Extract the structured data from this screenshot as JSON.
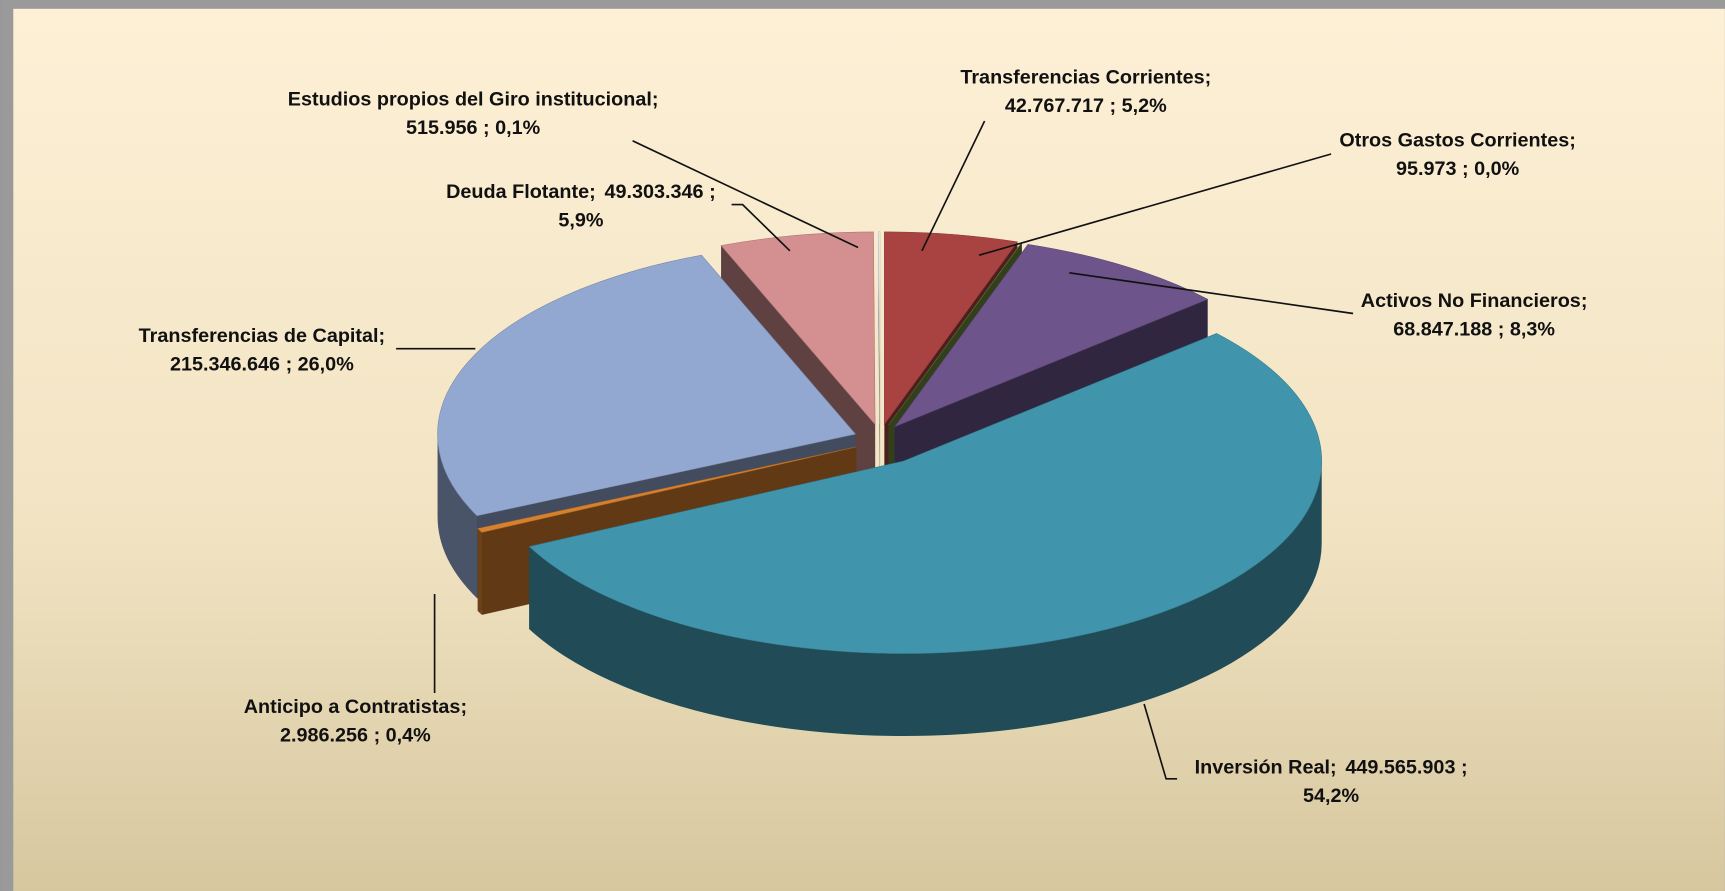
{
  "chart_data": {
    "type": "pie3d",
    "categories": [
      "Transferencias Corrientes",
      "Otros Gastos Corrientes",
      "Activos No Financieros",
      "Inversión Real",
      "Anticipo a Contratistas",
      "Transferencias de Capital",
      "Deuda Flotante",
      "Estudios propios del Giro institucional"
    ],
    "values": [
      42767717,
      95973,
      68847188,
      449565903,
      2986256,
      215346646,
      49303346,
      515956
    ],
    "value_labels": [
      "42.767.717",
      "95.973",
      "68.847.188",
      "449.565.903",
      "2.986.256",
      "215.346.646",
      "49.303.346",
      "515.956"
    ],
    "percent_labels": [
      "5,2%",
      "0,0%",
      "8,3%",
      "54,2%",
      "0,4%",
      "26,0%",
      "5,9%",
      "0,1%"
    ],
    "separator": ";",
    "colors": [
      "#a84341",
      "#6f8c3c",
      "#6d548b",
      "#4095ad",
      "#d7812f",
      "#93a8d0",
      "#d49090",
      "#f1eeea"
    ]
  }
}
